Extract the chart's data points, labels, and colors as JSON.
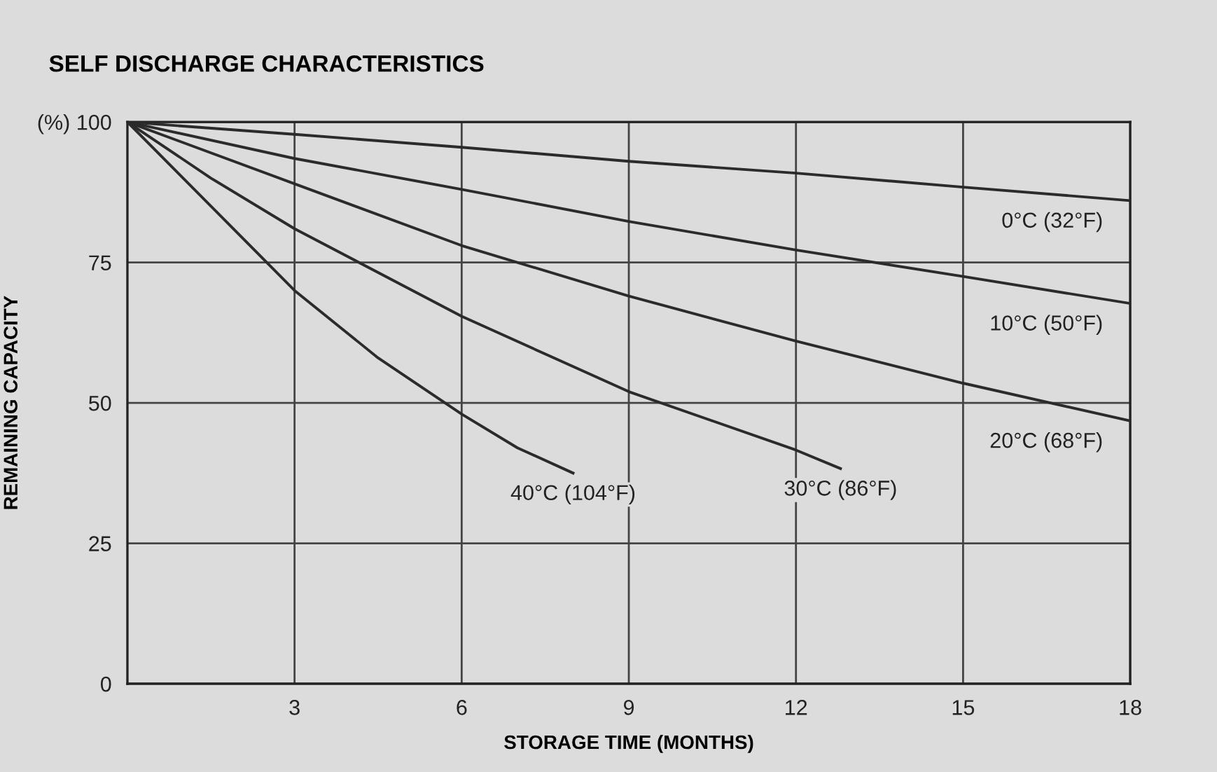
{
  "chart_data": {
    "type": "line",
    "title": "SELF DISCHARGE CHARACTERISTICS",
    "xlabel": "STORAGE TIME (MONTHS)",
    "ylabel": "REMAINING CAPACITY",
    "x": [
      0,
      3,
      6,
      9,
      12,
      15,
      18
    ],
    "series": [
      {
        "name": "0°C (32°F)",
        "color": "#2b2b2b",
        "values": [
          100,
          97.8,
          95.5,
          93,
          90.9,
          88.4,
          86
        ]
      },
      {
        "name": "10°C (50°F)",
        "color": "#2b2b2b",
        "values": [
          100,
          93.5,
          88,
          82.3,
          77.2,
          72.5,
          67.7
        ]
      },
      {
        "name": "20°C (68°F)",
        "color": "#2b2b2b",
        "values": [
          100,
          89,
          78,
          69,
          61,
          53.5,
          46.8
        ]
      },
      {
        "name": "30°C (86°F)",
        "color": "#2b2b2b",
        "x": [
          0,
          1.5,
          3,
          6,
          9,
          12,
          12.8
        ],
        "values": [
          100,
          90,
          81,
          65.4,
          52,
          41.6,
          38.3
        ]
      },
      {
        "name": "40°C (104°F)",
        "color": "#2b2b2b",
        "x": [
          0,
          1.5,
          3,
          4.5,
          6,
          7,
          8
        ],
        "values": [
          100,
          85,
          70,
          58,
          48,
          42,
          37.5
        ]
      }
    ],
    "xlim": [
      0,
      18
    ],
    "xticks": [
      3,
      6,
      9,
      12,
      15,
      18
    ],
    "ylim": [
      0,
      100
    ],
    "yticks": [
      0,
      25,
      50,
      75,
      {
        "value": 100,
        "label": "(%) 100"
      }
    ],
    "grid": true,
    "marker": "none",
    "line_style": "solid",
    "legend": false
  }
}
